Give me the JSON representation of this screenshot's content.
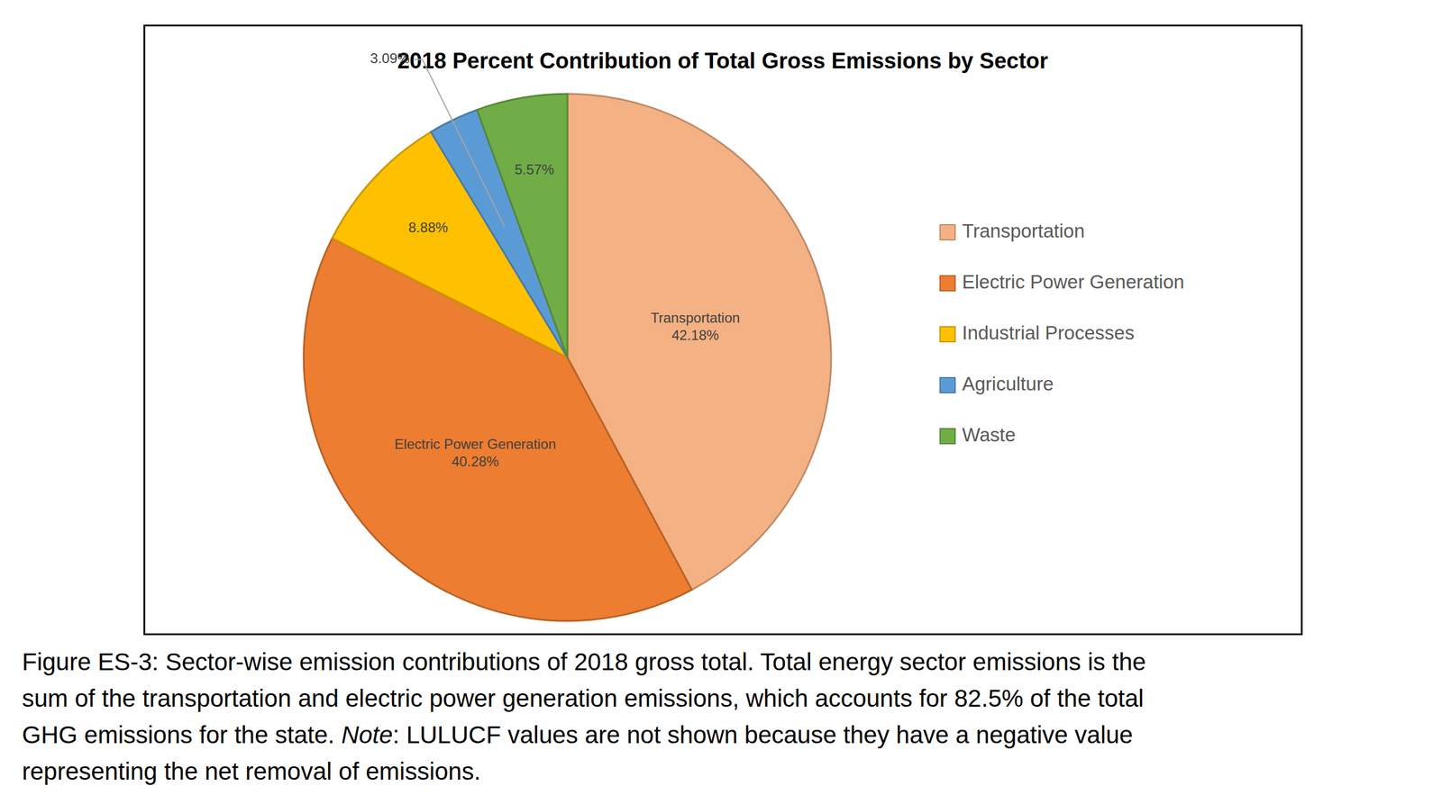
{
  "chart_data": {
    "type": "pie",
    "title": "2018 Percent Contribution of Total Gross Emissions by Sector",
    "categories": [
      "Transportation",
      "Electric Power Generation",
      "Industrial Processes",
      "Agriculture",
      "Waste"
    ],
    "values": [
      42.18,
      40.28,
      8.88,
      3.09,
      5.57
    ],
    "value_labels": [
      "42.18%",
      "40.28%",
      "8.88%",
      "3.09%",
      "5.57%"
    ],
    "colors": [
      "#f4b183",
      "#ed7d31",
      "#ffc000",
      "#5b9bd5",
      "#70ad47"
    ],
    "data_labels": true,
    "legend": "right"
  },
  "caption": [
    [
      {
        "text": "Figure ES-3: Sector-wise emission contributions of 2018 gross total. Total energy sector emissions is the"
      }
    ],
    [
      {
        "text": "sum of the transportation and electric power generation emissions, which accounts for 82.5% of the total"
      }
    ],
    [
      {
        "text": "GHG emissions for the state. "
      },
      {
        "text": "Note",
        "style": "italic"
      },
      {
        "text": ": LULUCF values are not shown because they have a negative value"
      }
    ],
    [
      {
        "text": "representing the net removal of emissions."
      }
    ]
  ]
}
